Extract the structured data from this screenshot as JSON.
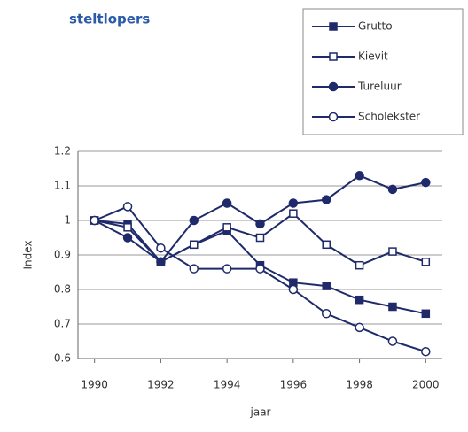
{
  "chart_data": {
    "type": "line",
    "title": "steltlopers",
    "x_label": "jaar",
    "y_label": "Index",
    "x": [
      1990,
      1991,
      1992,
      1993,
      1994,
      1995,
      1996,
      1997,
      1998,
      1999,
      2000
    ],
    "series": [
      {
        "name": "Grutto",
        "color": "#1f2a6b",
        "marker": "square-filled",
        "values": [
          1.0,
          0.99,
          0.88,
          0.93,
          0.97,
          0.87,
          0.82,
          0.81,
          0.77,
          0.75,
          0.73
        ]
      },
      {
        "name": "Kievit",
        "color": "#1f2a6b",
        "marker": "square-open",
        "values": [
          1.0,
          0.98,
          0.88,
          0.93,
          0.98,
          0.95,
          1.02,
          0.93,
          0.87,
          0.91,
          0.88
        ]
      },
      {
        "name": "Tureluur",
        "color": "#1f2a6b",
        "marker": "circle-filled",
        "values": [
          1.0,
          0.95,
          0.88,
          1.0,
          1.05,
          0.99,
          1.05,
          1.06,
          1.13,
          1.09,
          1.11
        ]
      },
      {
        "name": "Scholekster",
        "color": "#1f2a6b",
        "marker": "circle-open",
        "values": [
          1.0,
          1.04,
          0.92,
          0.86,
          0.86,
          0.86,
          0.8,
          0.73,
          0.69,
          0.65,
          0.62
        ]
      }
    ],
    "xlim": [
      1989.5,
      2000.5
    ],
    "xticks": [
      1990,
      1992,
      1994,
      1996,
      1998,
      2000
    ],
    "ylim": [
      0.6,
      1.2
    ],
    "yticks": [
      0.6,
      0.7,
      0.8,
      0.9,
      1,
      1.1,
      1.2
    ],
    "grid": true,
    "legend": "top-right"
  }
}
